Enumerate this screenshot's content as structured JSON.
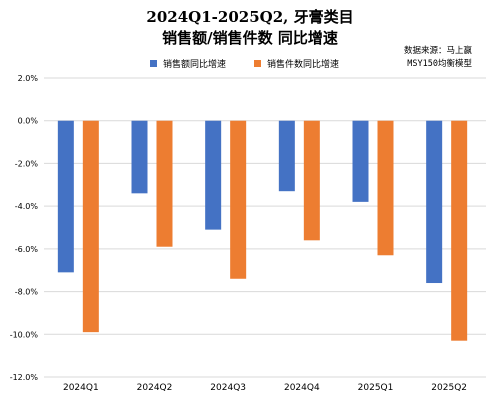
{
  "title_line1": "2024Q1-2025Q2, 牙膏类目",
  "title_line2": "销售额/销售件数 同比增速",
  "source_line1": "数据来源：马上赢",
  "source_line2": "MSY150均衡模型",
  "colors": {
    "series1": "#4472C4",
    "series2": "#ED7D31",
    "grid": "#D9D9D9"
  },
  "chart_data": {
    "type": "bar",
    "categories": [
      "2024Q1",
      "2024Q2",
      "2024Q3",
      "2024Q4",
      "2025Q1",
      "2025Q2"
    ],
    "series": [
      {
        "name": "销售额同比增速",
        "values": [
          -7.1,
          -3.4,
          -5.1,
          -3.3,
          -3.8,
          -7.6
        ]
      },
      {
        "name": "销售件数同比增速",
        "values": [
          -9.9,
          -5.9,
          -7.4,
          -5.6,
          -6.3,
          -10.3
        ]
      }
    ],
    "ylim": [
      -12,
      2
    ],
    "yticks": [
      "2.0%",
      "0.0%",
      "-2.0%",
      "-4.0%",
      "-6.0%",
      "-8.0%",
      "-10.0%",
      "-12.0%"
    ],
    "grid": true,
    "legend": "top"
  }
}
